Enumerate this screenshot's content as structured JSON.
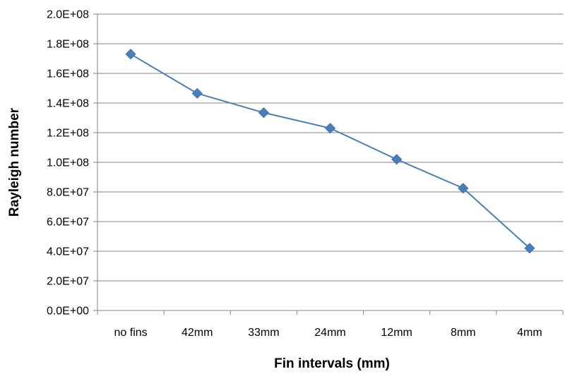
{
  "chart_data": {
    "type": "line",
    "title": "",
    "xlabel": "Fin intervals (mm)",
    "ylabel": "Rayleigh number",
    "categories": [
      "no fins",
      "42mm",
      "33mm",
      "24mm",
      "12mm",
      "8mm",
      "4mm"
    ],
    "series": [
      {
        "values": [
          173000000,
          146500000,
          133500000,
          123000000,
          102000000,
          82500000,
          42000000
        ],
        "color": "#4a7ebb",
        "marker": "diamond"
      }
    ],
    "ylim": [
      0,
      200000000
    ],
    "ytick_step": 20000000,
    "ytick_labels": [
      "0.0E+00",
      "2.0E+07",
      "4.0E+07",
      "6.0E+07",
      "8.0E+07",
      "1.0E+08",
      "1.2E+08",
      "1.4E+08",
      "1.6E+08",
      "1.8E+08",
      "2.0E+08"
    ],
    "grid": "horizontal",
    "legend": "none"
  }
}
